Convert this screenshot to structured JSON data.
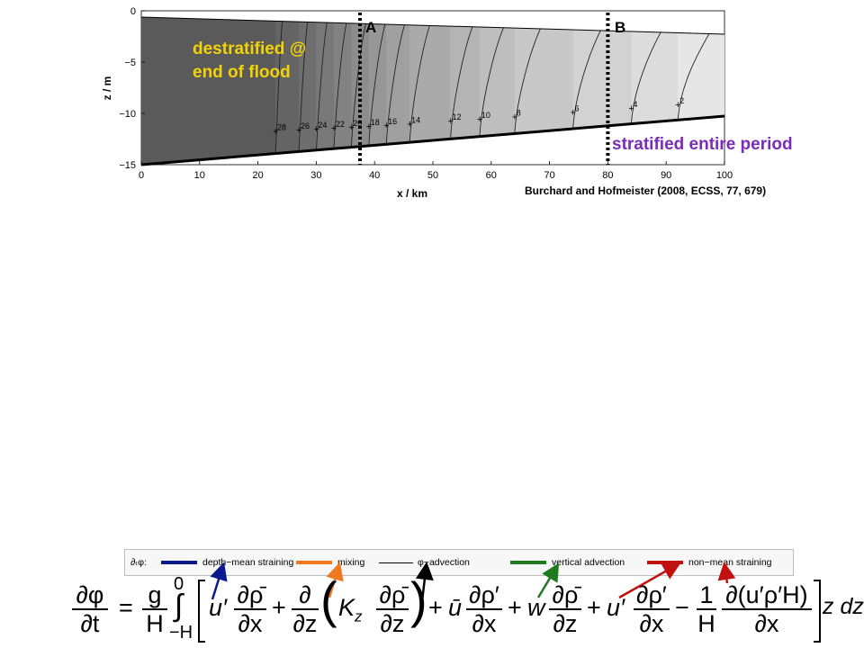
{
  "figure": {
    "ylabel": "z / m",
    "xlabel": "x / km",
    "xticks": [
      "0",
      "10",
      "20",
      "30",
      "40",
      "50",
      "60",
      "70",
      "80",
      "90",
      "100"
    ],
    "yticks": [
      "0",
      "−5",
      "−10",
      "−15"
    ],
    "station_a": "A",
    "station_b": "B",
    "contour_labels": [
      "28",
      "26",
      "24",
      "22",
      "20",
      "18",
      "16",
      "14",
      "12",
      "10",
      "8",
      "6",
      "4",
      "2"
    ]
  },
  "chart_data": {
    "type": "other",
    "xlabel": "x / km",
    "ylabel": "z / m",
    "xlim": [
      0,
      100
    ],
    "ylim": [
      -15,
      0
    ],
    "stations": [
      {
        "name": "A",
        "x": 37.5
      },
      {
        "name": "B",
        "x": 80
      }
    ],
    "isohalines": [
      {
        "value": 28,
        "x": 23
      },
      {
        "value": 26,
        "x": 27
      },
      {
        "value": 24,
        "x": 30
      },
      {
        "value": 22,
        "x": 33
      },
      {
        "value": 20,
        "x": 36
      },
      {
        "value": 18,
        "x": 39
      },
      {
        "value": 16,
        "x": 42
      },
      {
        "value": 14,
        "x": 46
      },
      {
        "value": 12,
        "x": 53
      },
      {
        "value": 10,
        "x": 58
      },
      {
        "value": 8,
        "x": 64
      },
      {
        "value": 6,
        "x": 74
      },
      {
        "value": 4,
        "x": 84
      },
      {
        "value": 2,
        "x": 92
      }
    ]
  },
  "annotations": {
    "destrat_line1": "destratified @",
    "destrat_line2": "end of flood",
    "stratified": "stratified entire period",
    "citation": "Burchard and Hofmeister (2008, ECSS, 77, 679)"
  },
  "legend": {
    "prefix": "∂ₜφ:",
    "items": [
      {
        "label": "depth−mean straining",
        "color": "#0a1a8c"
      },
      {
        "label": "mixing",
        "color": "#f07820"
      },
      {
        "label": "φ−advection",
        "color": "#000000"
      },
      {
        "label": "vertical advection",
        "color": "#1f7a1f"
      },
      {
        "label": "non−mean straining",
        "color": "#c01010"
      }
    ]
  },
  "equation": {
    "lhs_num": "∂φ",
    "lhs_den": "∂t",
    "eq": "=",
    "g_num": "g",
    "g_den": "H",
    "int_top": "0",
    "int_sym": "∫",
    "int_bot": "−H",
    "u_prime": "u′",
    "drho_num": "∂ρ̄",
    "dx_den": "∂x",
    "plus1": "+",
    "d_num": "∂",
    "dz_den": "∂z",
    "kz": "K",
    "kz_sub": "z",
    "drho2_num": "∂ρ̄",
    "dz2_den": "∂z",
    "plus2": "+",
    "ubar": "ū",
    "drhop_num": "∂ρ′",
    "dx2_den": "∂x",
    "plus3": "+",
    "w": "w",
    "drho3_num": "∂ρ̄",
    "dz3_den": "∂z",
    "plus4": "+",
    "u_prime2": "u′",
    "drhop2_num": "∂ρ′",
    "dx3_den": "∂x",
    "minus": "−",
    "one": "1",
    "h_den": "H",
    "corr_num": "∂(u′ρ′H)",
    "dx4_den": "∂x",
    "zdz": "z dz"
  }
}
